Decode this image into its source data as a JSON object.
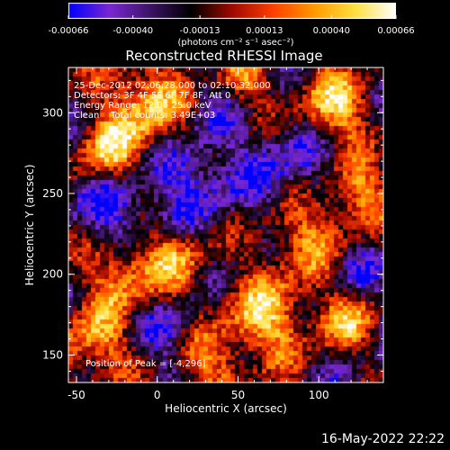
{
  "colorbar": {
    "ticks": [
      {
        "value": -0.00066,
        "label": "-0.00066"
      },
      {
        "value": -0.0004,
        "label": "-0.00040"
      },
      {
        "value": -0.00013,
        "label": "-0.00013"
      },
      {
        "value": 0.00013,
        "label": "0.00013"
      },
      {
        "value": 0.0004,
        "label": "0.00040"
      },
      {
        "value": 0.00066,
        "label": "0.00066"
      }
    ],
    "units_label": "(photons cm⁻² s⁻¹ asec⁻²)",
    "range": [
      -0.00066,
      0.00066
    ]
  },
  "chart_data": {
    "type": "heatmap",
    "title": "Reconstructed RHESSI Image",
    "xlabel": "Heliocentric X (arcsec)",
    "ylabel": "Heliocentric Y (arcsec)",
    "xlim": [
      -55,
      140
    ],
    "ylim": [
      133,
      328
    ],
    "xticks": [
      -50,
      0,
      50,
      100
    ],
    "yticks": [
      150,
      200,
      250,
      300
    ],
    "annotations": [
      "25-Dec-2012 02:06:28.000 to 02:10:32.000",
      "Detectors: 3F 4F 5F 6F 7F 8F, Att 0",
      "Energy Range: 12.0 - 25.0 keV",
      "Clean    Total counts: 3.49E+03"
    ],
    "peak_label": "Position of Peak = [-4,296]",
    "peak": {
      "x": -4,
      "y": 296
    }
  },
  "datestamp": "16-May-2022 22:22",
  "colors": {
    "background": "#000000",
    "colormap": [
      "#0000ff",
      "#7a28d2",
      "#3c1464",
      "#000000",
      "#a00a00",
      "#ff4000",
      "#ff9a00",
      "#ffe040",
      "#ffffff"
    ]
  }
}
